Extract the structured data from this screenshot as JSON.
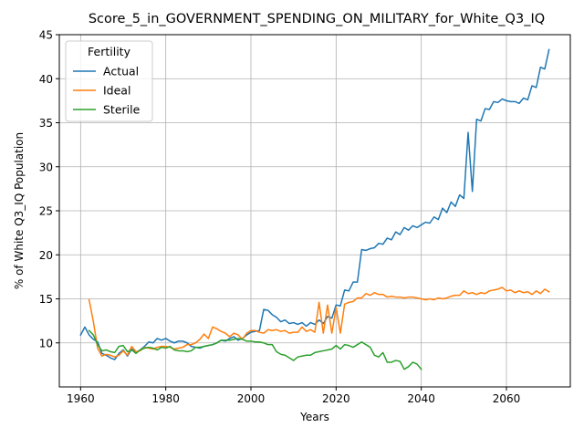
{
  "chart_data": {
    "type": "line",
    "title": "Score_5_in_GOVERNMENT_SPENDING_ON_MILITARY_for_White_Q3_IQ",
    "xlabel": "Years",
    "ylabel": "% of White Q3_IQ Population",
    "xlim": [
      1955,
      2075
    ],
    "ylim": [
      5.0,
      45.0
    ],
    "xticks": [
      1960,
      1980,
      2000,
      2020,
      2040,
      2060
    ],
    "yticks": [
      10,
      15,
      20,
      25,
      30,
      35,
      40,
      45
    ],
    "grid": true,
    "legend": {
      "title": "Fertility",
      "placement": "upper-left"
    },
    "series": [
      {
        "name": "Actual",
        "color": "#1f77b4",
        "x": [
          1960,
          1961,
          1962,
          1963,
          1964,
          1965,
          1966,
          1967,
          1968,
          1969,
          1970,
          1971,
          1972,
          1973,
          1974,
          1975,
          1976,
          1977,
          1978,
          1979,
          1980,
          1981,
          1982,
          1983,
          1984,
          1985,
          1986,
          1987,
          1988,
          1989,
          1990,
          1991,
          1992,
          1993,
          1994,
          1995,
          1996,
          1997,
          1998,
          1999,
          2000,
          2001,
          2002,
          2003,
          2004,
          2005,
          2006,
          2007,
          2008,
          2009,
          2010,
          2011,
          2012,
          2013,
          2014,
          2015,
          2016,
          2017,
          2018,
          2019,
          2020,
          2021,
          2022,
          2023,
          2024,
          2025,
          2026,
          2027,
          2028,
          2029,
          2030,
          2031,
          2032,
          2033,
          2034,
          2035,
          2036,
          2037,
          2038,
          2039,
          2040,
          2041,
          2042,
          2043,
          2044,
          2045,
          2046,
          2047,
          2048,
          2049,
          2050,
          2051,
          2052,
          2053,
          2054,
          2055,
          2056,
          2057,
          2058,
          2059,
          2060,
          2061,
          2062,
          2063,
          2064,
          2065,
          2066,
          2067,
          2068,
          2069,
          2070
        ],
        "values": [
          10.9,
          11.8,
          10.9,
          10.4,
          10.1,
          8.8,
          8.6,
          8.3,
          8.1,
          8.8,
          9.2,
          8.5,
          9.3,
          8.9,
          9.2,
          9.6,
          10.1,
          10.0,
          10.5,
          10.3,
          10.5,
          10.2,
          10.0,
          10.2,
          10.2,
          10.0,
          9.6,
          9.5,
          9.4,
          9.6,
          9.7,
          9.8,
          10.0,
          10.3,
          10.2,
          10.5,
          10.7,
          10.3,
          10.5,
          10.9,
          11.2,
          11.3,
          11.4,
          13.8,
          13.7,
          13.2,
          12.9,
          12.4,
          12.6,
          12.2,
          12.3,
          12.1,
          12.3,
          11.9,
          12.3,
          12.1,
          12.6,
          12.2,
          13.0,
          12.8,
          14.3,
          14.2,
          16.0,
          15.9,
          16.9,
          16.9,
          20.6,
          20.5,
          20.7,
          20.8,
          21.3,
          21.2,
          21.9,
          21.7,
          22.6,
          22.3,
          23.1,
          22.8,
          23.3,
          23.1,
          23.4,
          23.7,
          23.6,
          24.3,
          24.0,
          25.3,
          24.8,
          26.0,
          25.5,
          26.8,
          26.4,
          33.9,
          27.2,
          35.4,
          35.2,
          36.6,
          36.5,
          37.4,
          37.3,
          37.7,
          37.5,
          37.4,
          37.4,
          37.2,
          37.8,
          37.6,
          39.2,
          39.0,
          41.3,
          41.1,
          43.3
        ]
      },
      {
        "name": "Ideal",
        "color": "#ff7f0e",
        "x": [
          1962,
          1963,
          1964,
          1965,
          1966,
          1967,
          1968,
          1969,
          1970,
          1971,
          1972,
          1973,
          1974,
          1975,
          1976,
          1977,
          1978,
          1979,
          1980,
          1981,
          1982,
          1983,
          1984,
          1985,
          1986,
          1987,
          1988,
          1989,
          1990,
          1991,
          1992,
          1993,
          1994,
          1995,
          1996,
          1997,
          1998,
          1999,
          2000,
          2001,
          2002,
          2003,
          2004,
          2005,
          2006,
          2007,
          2008,
          2009,
          2010,
          2011,
          2012,
          2013,
          2014,
          2015,
          2016,
          2017,
          2018,
          2019,
          2020,
          2021,
          2022,
          2023,
          2024,
          2025,
          2026,
          2027,
          2028,
          2029,
          2030,
          2031,
          2032,
          2033,
          2034,
          2035,
          2036,
          2037,
          2038,
          2039,
          2040,
          2041,
          2042,
          2043,
          2044,
          2045,
          2046,
          2047,
          2048,
          2049,
          2050,
          2051,
          2052,
          2053,
          2054,
          2055,
          2056,
          2057,
          2058,
          2059,
          2060,
          2061,
          2062,
          2063,
          2064,
          2065,
          2066,
          2067,
          2068,
          2069,
          2070
        ],
        "values": [
          14.9,
          12.4,
          9.4,
          8.5,
          8.7,
          8.6,
          8.4,
          8.6,
          9.1,
          8.6,
          9.6,
          9.0,
          9.1,
          9.5,
          9.4,
          9.3,
          9.5,
          9.6,
          9.6,
          9.5,
          9.3,
          9.4,
          9.5,
          9.8,
          9.8,
          10.0,
          10.4,
          11.0,
          10.5,
          11.8,
          11.6,
          11.3,
          11.1,
          10.7,
          11.1,
          10.9,
          10.4,
          11.1,
          11.4,
          11.4,
          11.2,
          11.1,
          11.5,
          11.4,
          11.5,
          11.3,
          11.4,
          11.1,
          11.2,
          11.2,
          11.8,
          11.3,
          11.5,
          11.2,
          14.6,
          11.1,
          14.3,
          11.1,
          14.0,
          11.1,
          14.4,
          14.6,
          14.7,
          15.1,
          15.1,
          15.6,
          15.4,
          15.7,
          15.5,
          15.5,
          15.2,
          15.3,
          15.2,
          15.2,
          15.1,
          15.2,
          15.2,
          15.1,
          15.0,
          14.9,
          15.0,
          14.9,
          15.1,
          15.0,
          15.1,
          15.3,
          15.4,
          15.4,
          15.9,
          15.6,
          15.7,
          15.5,
          15.7,
          15.6,
          15.9,
          16.0,
          16.1,
          16.3,
          15.9,
          16.0,
          15.7,
          15.9,
          15.7,
          15.8,
          15.5,
          15.9,
          15.6,
          16.1,
          15.8
        ]
      },
      {
        "name": "Sterile",
        "color": "#2ca02c",
        "x": [
          1962,
          1963,
          1964,
          1965,
          1966,
          1967,
          1968,
          1969,
          1970,
          1971,
          1972,
          1973,
          1974,
          1975,
          1976,
          1977,
          1978,
          1979,
          1980,
          1981,
          1982,
          1983,
          1984,
          1985,
          1986,
          1987,
          1988,
          1989,
          1990,
          1991,
          1992,
          1993,
          1994,
          1995,
          1996,
          1997,
          1998,
          1999,
          2000,
          2001,
          2002,
          2003,
          2004,
          2005,
          2006,
          2007,
          2008,
          2009,
          2010,
          2011,
          2012,
          2013,
          2014,
          2015,
          2016,
          2017,
          2018,
          2019,
          2020,
          2021,
          2022,
          2023,
          2024,
          2025,
          2026,
          2027,
          2028,
          2029,
          2030,
          2031,
          2032,
          2033,
          2034,
          2035,
          2036,
          2037,
          2038,
          2039,
          2040
        ],
        "values": [
          11.4,
          10.9,
          9.8,
          9.1,
          9.2,
          9.0,
          8.9,
          9.6,
          9.7,
          9.0,
          9.2,
          8.8,
          9.2,
          9.4,
          9.5,
          9.4,
          9.2,
          9.5,
          9.4,
          9.6,
          9.2,
          9.1,
          9.1,
          9.0,
          9.1,
          9.5,
          9.5,
          9.6,
          9.7,
          9.8,
          10.0,
          10.3,
          10.3,
          10.3,
          10.4,
          10.5,
          10.4,
          10.2,
          10.2,
          10.1,
          10.1,
          10.0,
          9.8,
          9.8,
          9.0,
          8.7,
          8.6,
          8.3,
          8.0,
          8.4,
          8.5,
          8.6,
          8.6,
          8.9,
          9.0,
          9.1,
          9.2,
          9.3,
          9.7,
          9.3,
          9.8,
          9.7,
          9.5,
          9.8,
          10.1,
          9.8,
          9.5,
          8.6,
          8.4,
          8.9,
          7.8,
          7.8,
          8.0,
          7.9,
          7.0,
          7.3,
          7.8,
          7.6,
          7.0
        ]
      }
    ]
  }
}
